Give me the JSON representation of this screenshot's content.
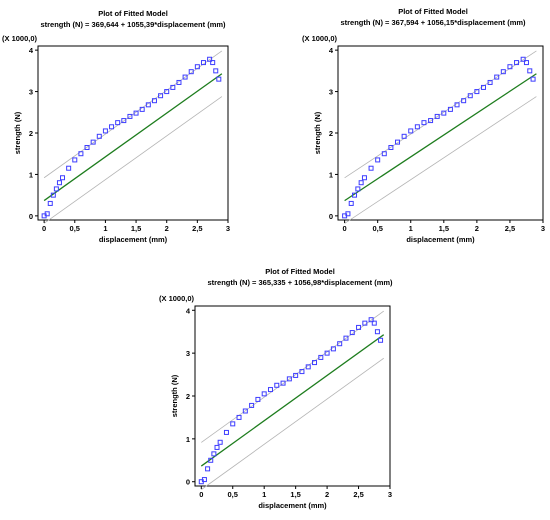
{
  "chart_data": [
    {
      "type": "scatter",
      "title": "Plot of Fitted Model",
      "subtitle": "strength (N) = 369,644 + 1055,39*displacement (mm)",
      "xlabel": "displacement (mm)",
      "ylabel": "strength (N)",
      "y_scale_label": "(X 1000,0)",
      "xlim": [
        -0.1,
        3.0
      ],
      "ylim": [
        -0.1,
        4.1
      ],
      "x_ticks": [
        "0",
        "0,5",
        "1",
        "1,5",
        "2",
        "2,5",
        "3"
      ],
      "y_ticks": [
        "0",
        "1",
        "2",
        "3",
        "4"
      ],
      "fit": {
        "intercept": 0.369644,
        "slope": 1.05539
      },
      "series": [
        {
          "marker": "square",
          "x": [
            0,
            0.05,
            0.1,
            0.15,
            0.2,
            0.25,
            0.3,
            0.4,
            0.5,
            0.6,
            0.7,
            0.8,
            0.9,
            1.0,
            1.1,
            1.2,
            1.3,
            1.4,
            1.5,
            1.6,
            1.7,
            1.8,
            1.9,
            2.0,
            2.1,
            2.2,
            2.3,
            2.4,
            2.5,
            2.6,
            2.7,
            2.75,
            2.8,
            2.85
          ],
          "y": [
            0,
            0.05,
            0.3,
            0.5,
            0.65,
            0.8,
            0.92,
            1.15,
            1.35,
            1.5,
            1.65,
            1.78,
            1.92,
            2.05,
            2.15,
            2.25,
            2.3,
            2.4,
            2.48,
            2.57,
            2.68,
            2.78,
            2.9,
            3.0,
            3.1,
            3.22,
            3.35,
            3.48,
            3.6,
            3.7,
            3.78,
            3.7,
            3.5,
            3.3
          ]
        }
      ],
      "colors": {
        "points": "#3d3dff",
        "fit": "#1e7d1e",
        "bounds": "#b4b4b4"
      }
    },
    {
      "type": "scatter",
      "title": "Plot of Fitted Model",
      "subtitle": "strength (N) = 367,594 + 1056,15*displacement (mm)",
      "xlabel": "displacement (mm)",
      "ylabel": "strength (N)",
      "y_scale_label": "(X 1000,0)",
      "xlim": [
        -0.1,
        3.0
      ],
      "ylim": [
        -0.1,
        4.1
      ],
      "x_ticks": [
        "0",
        "0,5",
        "1",
        "1,5",
        "2",
        "2,5",
        "3"
      ],
      "y_ticks": [
        "0",
        "1",
        "2",
        "3",
        "4"
      ],
      "fit": {
        "intercept": 0.367594,
        "slope": 1.05615
      },
      "series": [
        {
          "marker": "square",
          "x": [
            0,
            0.05,
            0.1,
            0.15,
            0.2,
            0.25,
            0.3,
            0.4,
            0.5,
            0.6,
            0.7,
            0.8,
            0.9,
            1.0,
            1.1,
            1.2,
            1.3,
            1.4,
            1.5,
            1.6,
            1.7,
            1.8,
            1.9,
            2.0,
            2.1,
            2.2,
            2.3,
            2.4,
            2.5,
            2.6,
            2.7,
            2.75,
            2.8,
            2.85
          ],
          "y": [
            0,
            0.05,
            0.3,
            0.5,
            0.65,
            0.8,
            0.92,
            1.15,
            1.35,
            1.5,
            1.65,
            1.78,
            1.92,
            2.05,
            2.15,
            2.25,
            2.3,
            2.4,
            2.48,
            2.57,
            2.68,
            2.78,
            2.9,
            3.0,
            3.1,
            3.22,
            3.35,
            3.48,
            3.6,
            3.7,
            3.78,
            3.7,
            3.5,
            3.3
          ]
        }
      ],
      "colors": {
        "points": "#3d3dff",
        "fit": "#1e7d1e",
        "bounds": "#b4b4b4"
      }
    },
    {
      "type": "scatter",
      "title": "Plot of Fitted Model",
      "subtitle": "strength (N) = 365,335 + 1056,98*displacement (mm)",
      "xlabel": "displacement (mm)",
      "ylabel": "strength (N)",
      "y_scale_label": "(X 1000,0)",
      "xlim": [
        -0.1,
        3.0
      ],
      "ylim": [
        -0.1,
        4.1
      ],
      "x_ticks": [
        "0",
        "0,5",
        "1",
        "1,5",
        "2",
        "2,5",
        "3"
      ],
      "y_ticks": [
        "0",
        "1",
        "2",
        "3",
        "4"
      ],
      "fit": {
        "intercept": 0.365335,
        "slope": 1.05698
      },
      "series": [
        {
          "marker": "square",
          "x": [
            0,
            0.05,
            0.1,
            0.15,
            0.2,
            0.25,
            0.3,
            0.4,
            0.5,
            0.6,
            0.7,
            0.8,
            0.9,
            1.0,
            1.1,
            1.2,
            1.3,
            1.4,
            1.5,
            1.6,
            1.7,
            1.8,
            1.9,
            2.0,
            2.1,
            2.2,
            2.3,
            2.4,
            2.5,
            2.6,
            2.7,
            2.75,
            2.8,
            2.85
          ],
          "y": [
            0,
            0.05,
            0.3,
            0.5,
            0.65,
            0.8,
            0.92,
            1.15,
            1.35,
            1.5,
            1.65,
            1.78,
            1.92,
            2.05,
            2.15,
            2.25,
            2.3,
            2.4,
            2.48,
            2.57,
            2.68,
            2.78,
            2.9,
            3.0,
            3.1,
            3.22,
            3.35,
            3.48,
            3.6,
            3.7,
            3.78,
            3.7,
            3.5,
            3.3
          ]
        }
      ],
      "colors": {
        "points": "#3d3dff",
        "fit": "#1e7d1e",
        "bounds": "#b4b4b4"
      }
    }
  ]
}
